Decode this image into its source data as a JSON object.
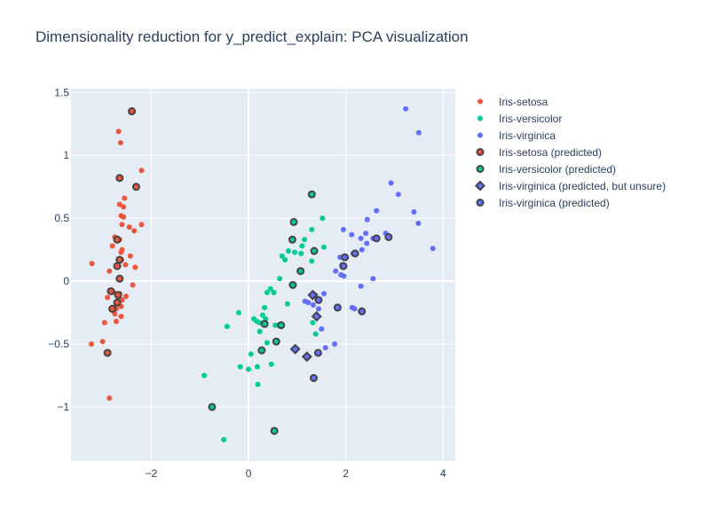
{
  "chart_data": {
    "type": "scatter",
    "title": "Dimensionality reduction for y_predict_explain: PCA visualization",
    "xlim": [
      -3.65,
      4.25
    ],
    "ylim": [
      -1.43,
      1.53
    ],
    "x_ticks": [
      -2,
      0,
      2,
      4
    ],
    "x_tick_labels": [
      "−2",
      "0",
      "2",
      "4"
    ],
    "y_ticks": [
      -1,
      -0.5,
      0,
      0.5,
      1,
      1.5
    ],
    "y_tick_labels": [
      "−1",
      "−0.5",
      "0",
      "0.5",
      "1",
      "1.5"
    ],
    "grid": true,
    "legend_position": "right",
    "colors": {
      "setosa": "#EF553B",
      "versicolor": "#00CC96",
      "virginica": "#636EFA",
      "plot_bg": "#E5ECF6",
      "marker_outline": "#444444"
    },
    "series": [
      {
        "name": "Iris-setosa",
        "color": "#EF553B",
        "symbol": "circle",
        "outlined": false,
        "points": [
          [
            -2.4,
            1.35
          ],
          [
            -2.67,
            1.19
          ],
          [
            -2.63,
            1.1
          ],
          [
            -2.2,
            0.88
          ],
          [
            -2.65,
            0.82
          ],
          [
            -2.55,
            0.66
          ],
          [
            -2.31,
            0.75
          ],
          [
            -2.65,
            0.61
          ],
          [
            -2.57,
            0.59
          ],
          [
            -2.57,
            0.51
          ],
          [
            -2.62,
            0.52
          ],
          [
            -2.6,
            0.45
          ],
          [
            -2.2,
            0.45
          ],
          [
            -2.45,
            0.43
          ],
          [
            -2.35,
            0.4
          ],
          [
            -2.75,
            0.35
          ],
          [
            -2.7,
            0.34
          ],
          [
            -2.65,
            0.33
          ],
          [
            -2.6,
            0.25
          ],
          [
            -2.8,
            0.28
          ],
          [
            -2.62,
            0.23
          ],
          [
            -2.43,
            0.2
          ],
          [
            -2.61,
            0.17
          ],
          [
            -2.53,
            0.13
          ],
          [
            -2.33,
            0.11
          ],
          [
            -2.7,
            0.12
          ],
          [
            -3.22,
            0.14
          ],
          [
            -2.86,
            0.08
          ],
          [
            -2.63,
            0.02
          ],
          [
            -2.38,
            -0.03
          ],
          [
            -2.77,
            -0.09
          ],
          [
            -2.65,
            -0.1
          ],
          [
            -2.52,
            -0.12
          ],
          [
            -2.9,
            -0.13
          ],
          [
            -2.6,
            -0.15
          ],
          [
            -2.72,
            -0.18
          ],
          [
            -2.62,
            -0.2
          ],
          [
            -2.81,
            -0.23
          ],
          [
            -2.72,
            -0.22
          ],
          [
            -2.75,
            -0.26
          ],
          [
            -2.62,
            -0.28
          ],
          [
            -2.72,
            -0.32
          ],
          [
            -2.96,
            -0.33
          ],
          [
            -3.0,
            -0.48
          ],
          [
            -3.23,
            -0.5
          ],
          [
            -2.88,
            -0.57
          ],
          [
            -2.86,
            -0.93
          ]
        ]
      },
      {
        "name": "Iris-versicolor",
        "color": "#00CC96",
        "symbol": "circle",
        "outlined": false,
        "points": [
          [
            1.3,
            0.69
          ],
          [
            1.52,
            0.5
          ],
          [
            1.3,
            0.41
          ],
          [
            0.92,
            0.47
          ],
          [
            1.15,
            0.33
          ],
          [
            1.55,
            0.27
          ],
          [
            0.95,
            0.23
          ],
          [
            1.1,
            0.28
          ],
          [
            1.08,
            0.22
          ],
          [
            0.75,
            0.17
          ],
          [
            1.3,
            0.16
          ],
          [
            0.69,
            0.2
          ],
          [
            0.82,
            0.24
          ],
          [
            0.64,
            0.02
          ],
          [
            1.04,
            0.08
          ],
          [
            0.91,
            -0.03
          ],
          [
            0.45,
            -0.06
          ],
          [
            0.38,
            -0.09
          ],
          [
            0.52,
            -0.09
          ],
          [
            0.8,
            -0.18
          ],
          [
            0.33,
            -0.21
          ],
          [
            0.35,
            -0.3
          ],
          [
            -0.2,
            -0.25
          ],
          [
            0.29,
            -0.27
          ],
          [
            0.23,
            -0.33
          ],
          [
            0.62,
            -0.35
          ],
          [
            0.11,
            -0.3
          ],
          [
            0.17,
            -0.32
          ],
          [
            0.55,
            -0.35
          ],
          [
            1.38,
            -0.42
          ],
          [
            1.32,
            -0.33
          ],
          [
            -0.44,
            -0.36
          ],
          [
            0.23,
            -0.4
          ],
          [
            0.38,
            -0.49
          ],
          [
            0.59,
            -0.48
          ],
          [
            0.29,
            -0.55
          ],
          [
            0.05,
            -0.58
          ],
          [
            -0.17,
            -0.68
          ],
          [
            0.0,
            -0.7
          ],
          [
            0.18,
            -0.68
          ],
          [
            0.47,
            -0.66
          ],
          [
            0.19,
            -0.82
          ],
          [
            -0.91,
            -0.75
          ],
          [
            -0.75,
            -1.0
          ],
          [
            -0.51,
            -1.26
          ],
          [
            0.53,
            -1.19
          ]
        ]
      },
      {
        "name": "Iris-virginica",
        "color": "#636EFA",
        "symbol": "circle",
        "outlined": false,
        "points": [
          [
            3.23,
            1.37
          ],
          [
            3.5,
            1.18
          ],
          [
            2.93,
            0.78
          ],
          [
            3.08,
            0.69
          ],
          [
            2.63,
            0.56
          ],
          [
            3.4,
            0.55
          ],
          [
            3.49,
            0.46
          ],
          [
            2.44,
            0.49
          ],
          [
            1.95,
            0.41
          ],
          [
            2.41,
            0.38
          ],
          [
            2.12,
            0.37
          ],
          [
            2.31,
            0.34
          ],
          [
            2.56,
            0.34
          ],
          [
            2.82,
            0.38
          ],
          [
            2.43,
            0.3
          ],
          [
            2.33,
            0.25
          ],
          [
            2.15,
            0.22
          ],
          [
            2.01,
            0.19
          ],
          [
            1.88,
            0.19
          ],
          [
            3.79,
            0.26
          ],
          [
            1.92,
            0.13
          ],
          [
            1.79,
            0.08
          ],
          [
            1.9,
            0.05
          ],
          [
            1.96,
            0.04
          ],
          [
            2.56,
            0.02
          ],
          [
            2.31,
            -0.04
          ],
          [
            1.55,
            -0.1
          ],
          [
            1.37,
            -0.11
          ],
          [
            1.43,
            -0.15
          ],
          [
            1.16,
            -0.16
          ],
          [
            1.23,
            -0.17
          ],
          [
            1.33,
            -0.19
          ],
          [
            1.44,
            -0.22
          ],
          [
            2.13,
            -0.21
          ],
          [
            2.18,
            -0.22
          ],
          [
            1.5,
            -0.38
          ],
          [
            1.77,
            -0.5
          ],
          [
            1.58,
            -0.53
          ],
          [
            1.34,
            -0.77
          ]
        ]
      },
      {
        "name": "Iris-setosa (predicted)",
        "color": "#EF553B",
        "symbol": "circle",
        "outlined": true,
        "points": [
          [
            -2.4,
            1.35
          ],
          [
            -2.65,
            0.82
          ],
          [
            -2.31,
            0.75
          ],
          [
            -2.7,
            0.33
          ],
          [
            -2.65,
            0.17
          ],
          [
            -2.7,
            0.12
          ],
          [
            -2.65,
            0.02
          ],
          [
            -2.83,
            -0.08
          ],
          [
            -2.68,
            -0.11
          ],
          [
            -2.7,
            -0.17
          ],
          [
            -2.8,
            -0.22
          ],
          [
            -2.9,
            -0.57
          ]
        ]
      },
      {
        "name": "Iris-versicolor (predicted)",
        "color": "#00CC96",
        "symbol": "circle",
        "outlined": true,
        "points": [
          [
            1.3,
            0.69
          ],
          [
            0.93,
            0.47
          ],
          [
            0.9,
            0.33
          ],
          [
            1.35,
            0.24
          ],
          [
            1.07,
            0.08
          ],
          [
            0.91,
            -0.03
          ],
          [
            0.33,
            -0.34
          ],
          [
            0.67,
            -0.35
          ],
          [
            0.57,
            -0.48
          ],
          [
            0.27,
            -0.55
          ],
          [
            -0.75,
            -1.0
          ],
          [
            0.53,
            -1.19
          ]
        ]
      },
      {
        "name": "Iris-virginica (predicted, but unsure)",
        "color": "#636EFA",
        "symbol": "diamond",
        "outlined": true,
        "points": [
          [
            1.32,
            -0.11
          ],
          [
            1.4,
            -0.28
          ],
          [
            0.96,
            -0.54
          ],
          [
            1.2,
            -0.6
          ]
        ]
      },
      {
        "name": "Iris-virginica (predicted)",
        "color": "#636EFA",
        "symbol": "circle",
        "outlined": true,
        "points": [
          [
            2.88,
            0.35
          ],
          [
            2.63,
            0.34
          ],
          [
            2.19,
            0.22
          ],
          [
            1.98,
            0.19
          ],
          [
            1.95,
            0.12
          ],
          [
            1.44,
            -0.15
          ],
          [
            1.83,
            -0.21
          ],
          [
            2.33,
            -0.24
          ],
          [
            1.43,
            -0.57
          ],
          [
            1.34,
            -0.77
          ]
        ]
      }
    ]
  }
}
